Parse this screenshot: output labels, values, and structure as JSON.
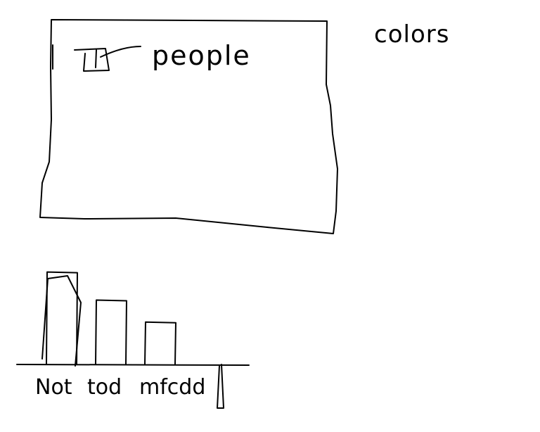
{
  "canvas": {
    "background": "#ffffff",
    "ink_color": "#000000"
  },
  "panel": {
    "checkbox_state": "checked",
    "item_label": "people"
  },
  "side_note": {
    "label": "colors"
  },
  "chart_data": {
    "type": "bar",
    "categories": [
      "Not",
      "tod",
      "mfcdd"
    ],
    "values": [
      122,
      85,
      56
    ],
    "title": "",
    "xlabel": "",
    "ylabel": "",
    "ylim": [
      0,
      130
    ],
    "grid": false,
    "legend": "none"
  }
}
